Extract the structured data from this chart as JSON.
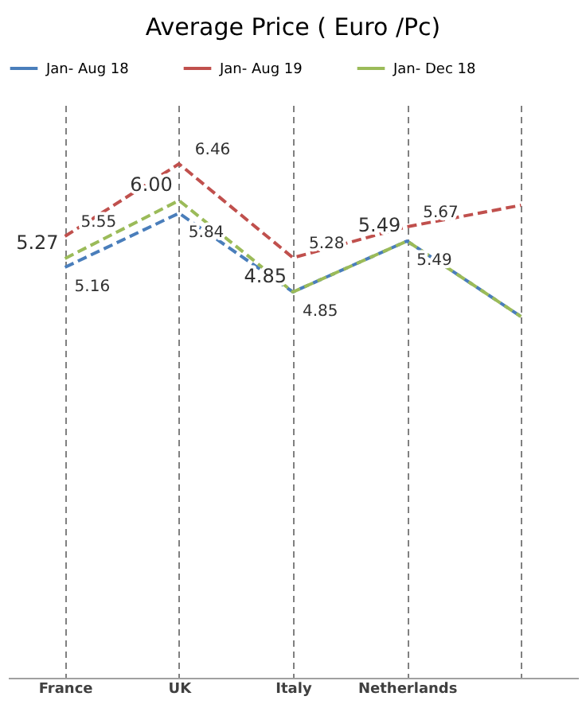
{
  "chart_data": {
    "type": "line",
    "title": "Average Price ( Euro /Pc)",
    "categories": [
      "France",
      "UK",
      "Italy",
      "Netherlands",
      null
    ],
    "series": [
      {
        "name": "Jan- Aug 18",
        "color": "#4a7ebb",
        "line_style": "dashed",
        "values": [
          5.16,
          5.84,
          4.85,
          5.49,
          4.54
        ],
        "value_labels": [
          "5.16",
          "5.84",
          "4.85",
          "5.49",
          null
        ]
      },
      {
        "name": "Jan- Aug 19",
        "color": "#c0504d",
        "line_style": "dashed",
        "values": [
          5.55,
          6.46,
          5.28,
          5.67,
          5.94
        ],
        "value_labels": [
          "5.55",
          "6.46",
          "5.28",
          "5.67",
          null
        ]
      },
      {
        "name": "Jan- Dec 18",
        "color": "#9bbb59",
        "line_style": "dashed",
        "values": [
          5.27,
          6.0,
          4.85,
          5.49,
          4.54
        ],
        "value_labels": [
          "5.27",
          "6.00",
          "4.85",
          "5.49",
          null
        ]
      }
    ],
    "ylim": [
      0,
      7.2
    ],
    "tick_labels": "x",
    "grid": "x",
    "legend": "top",
    "marker": "none"
  }
}
